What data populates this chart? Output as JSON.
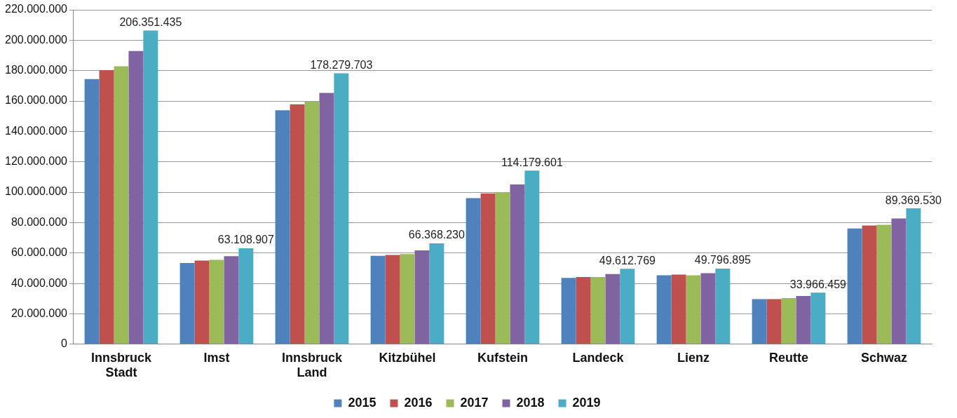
{
  "chart_data": {
    "type": "bar",
    "categories": [
      "Innsbruck Stadt",
      "Imst",
      "Innsbruck Land",
      "Kitzbühel",
      "Kufstein",
      "Landeck",
      "Lienz",
      "Reutte",
      "Schwaz"
    ],
    "series": [
      {
        "name": "2015",
        "color": "#4f81bd",
        "values": [
          174400000,
          53400000,
          153900000,
          58200000,
          96100000,
          43600000,
          45300000,
          29700000,
          76100000
        ]
      },
      {
        "name": "2016",
        "color": "#c0504d",
        "values": [
          180300000,
          55000000,
          157800000,
          58700000,
          99200000,
          44200000,
          45800000,
          29700000,
          78100000
        ]
      },
      {
        "name": "2017",
        "color": "#9bbb59",
        "values": [
          182900000,
          55500000,
          159700000,
          59300000,
          99900000,
          44200000,
          45300000,
          30400000,
          78600000
        ]
      },
      {
        "name": "2018",
        "color": "#8064a2",
        "values": [
          192900000,
          57900000,
          165300000,
          61700000,
          105100000,
          46200000,
          46700000,
          31800000,
          82700000
        ]
      },
      {
        "name": "2019",
        "color": "#4bacc6",
        "values": [
          206351435,
          63108907,
          178279703,
          66368230,
          114179601,
          49612769,
          49796895,
          33966459,
          89369530
        ],
        "value_labels": [
          "206.351.435",
          "63.108.907",
          "178.279.703",
          "66.368.230",
          "114.179.601",
          "49.612.769",
          "49.796.895",
          "33.966.459",
          "89.369.530"
        ]
      }
    ],
    "ylim": [
      0,
      220000000
    ],
    "yticks": [
      {
        "value": 0,
        "label": "0"
      },
      {
        "value": 20000000,
        "label": "20.000.000"
      },
      {
        "value": 40000000,
        "label": "40.000.000"
      },
      {
        "value": 60000000,
        "label": "60.000.000"
      },
      {
        "value": 80000000,
        "label": "80.000.000"
      },
      {
        "value": 100000000,
        "label": "100.000.000"
      },
      {
        "value": 120000000,
        "label": "120.000.000"
      },
      {
        "value": 140000000,
        "label": "140.000.000"
      },
      {
        "value": 160000000,
        "label": "160.000.000"
      },
      {
        "value": 180000000,
        "label": "180.000.000"
      },
      {
        "value": 200000000,
        "label": "200.000.000"
      },
      {
        "value": 220000000,
        "label": "220.000.000"
      }
    ],
    "grid": "y",
    "legend": "bottom"
  }
}
